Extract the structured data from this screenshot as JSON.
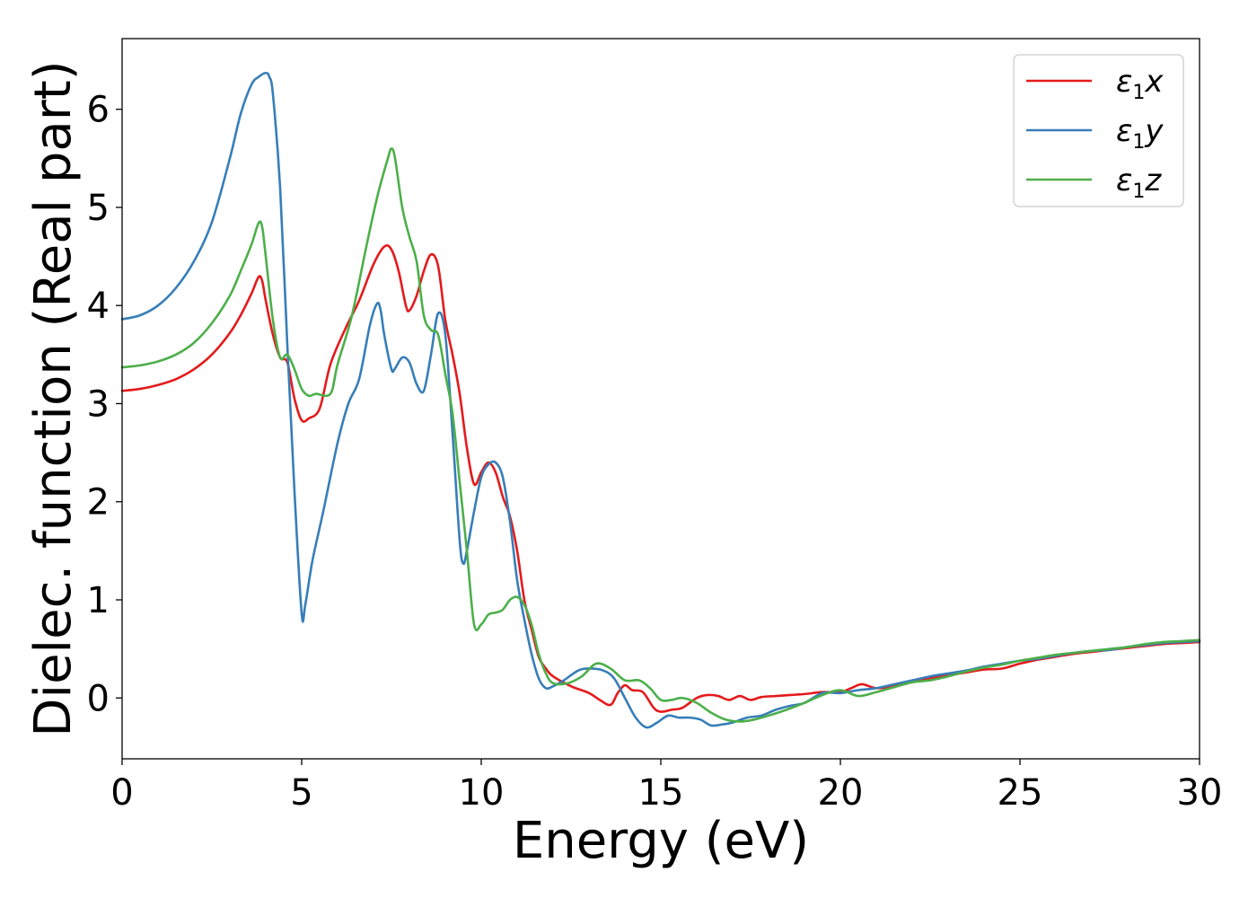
{
  "chart_data": {
    "type": "line",
    "title": "",
    "xlabel": "Energy (eV)",
    "ylabel": "Dielec. function (Real part)",
    "xlim": [
      0,
      30
    ],
    "ylim": [
      -0.62,
      6.72
    ],
    "xticks": [
      0,
      5,
      10,
      15,
      20,
      25,
      30
    ],
    "yticks": [
      0,
      1,
      2,
      3,
      4,
      5,
      6
    ],
    "grid": false,
    "legend_position": "top-right",
    "series": [
      {
        "name": "ε₁x",
        "legend_base": "ε",
        "legend_sub": "1",
        "legend_var": "x",
        "color": "#e41a1c",
        "x": [
          0,
          0.5,
          1.0,
          1.5,
          2.0,
          2.5,
          3.0,
          3.3,
          3.6,
          3.8,
          3.9,
          4.0,
          4.2,
          4.4,
          4.6,
          4.8,
          5.0,
          5.2,
          5.5,
          5.8,
          6.2,
          6.6,
          7.0,
          7.3,
          7.5,
          7.7,
          7.9,
          8.0,
          8.2,
          8.4,
          8.6,
          8.8,
          9.0,
          9.2,
          9.4,
          9.6,
          9.8,
          10.0,
          10.2,
          10.4,
          10.6,
          10.8,
          11.0,
          11.2,
          11.4,
          11.6,
          11.8,
          12.0,
          12.5,
          13.0,
          13.3,
          13.6,
          13.8,
          14.0,
          14.2,
          14.5,
          14.8,
          15.0,
          15.3,
          15.6,
          16.0,
          16.3,
          16.6,
          16.9,
          17.2,
          17.5,
          17.8,
          18.2,
          18.6,
          19.0,
          19.5,
          20.0,
          20.3,
          20.6,
          21.0,
          21.5,
          22.0,
          22.5,
          23.0,
          23.5,
          24.0,
          24.5,
          25.0,
          25.5,
          26.0,
          26.5,
          27.0,
          27.5,
          28.0,
          28.5,
          29.0,
          29.5,
          30.0
        ],
        "y": [
          3.13,
          3.15,
          3.19,
          3.25,
          3.35,
          3.5,
          3.72,
          3.9,
          4.12,
          4.29,
          4.25,
          4.05,
          3.7,
          3.47,
          3.42,
          3.05,
          2.83,
          2.85,
          2.95,
          3.4,
          3.75,
          4.05,
          4.42,
          4.6,
          4.57,
          4.35,
          4.0,
          3.95,
          4.1,
          4.35,
          4.52,
          4.4,
          3.85,
          3.5,
          3.1,
          2.55,
          2.18,
          2.3,
          2.4,
          2.3,
          2.05,
          1.85,
          1.5,
          1.0,
          0.7,
          0.42,
          0.3,
          0.22,
          0.12,
          0.05,
          -0.02,
          -0.07,
          0.05,
          0.13,
          0.08,
          0.06,
          -0.1,
          -0.14,
          -0.12,
          -0.1,
          0.0,
          0.03,
          0.02,
          -0.02,
          0.02,
          -0.02,
          0.01,
          0.02,
          0.03,
          0.04,
          0.06,
          0.06,
          0.1,
          0.14,
          0.1,
          0.12,
          0.16,
          0.2,
          0.23,
          0.26,
          0.29,
          0.3,
          0.35,
          0.39,
          0.42,
          0.45,
          0.47,
          0.49,
          0.51,
          0.53,
          0.55,
          0.56,
          0.57
        ]
      },
      {
        "name": "ε₁y",
        "legend_base": "ε",
        "legend_sub": "1",
        "legend_var": "y",
        "color": "#377eb8",
        "x": [
          0,
          0.5,
          1.0,
          1.5,
          2.0,
          2.5,
          3.0,
          3.3,
          3.6,
          3.8,
          4.0,
          4.1,
          4.2,
          4.4,
          4.6,
          4.8,
          5.0,
          5.1,
          5.3,
          5.6,
          6.0,
          6.3,
          6.6,
          6.9,
          7.1,
          7.2,
          7.3,
          7.5,
          7.6,
          7.8,
          8.0,
          8.2,
          8.4,
          8.6,
          8.8,
          9.0,
          9.2,
          9.4,
          9.5,
          9.6,
          9.8,
          10.0,
          10.2,
          10.4,
          10.6,
          10.8,
          11.0,
          11.2,
          11.4,
          11.6,
          11.8,
          12.0,
          12.3,
          12.7,
          13.0,
          13.4,
          13.7,
          14.0,
          14.3,
          14.6,
          14.9,
          15.2,
          15.5,
          15.8,
          16.1,
          16.4,
          16.7,
          17.0,
          17.4,
          17.8,
          18.2,
          18.6,
          19.0,
          19.5,
          20.0,
          20.5,
          21.0,
          21.5,
          22.0,
          22.5,
          23.0,
          23.5,
          24.0,
          24.5,
          25.0,
          25.5,
          26.0,
          26.5,
          27.0,
          27.5,
          28.0,
          28.5,
          29.0,
          29.5,
          30.0
        ],
        "y": [
          3.86,
          3.9,
          4.0,
          4.18,
          4.45,
          4.85,
          5.5,
          5.95,
          6.25,
          6.33,
          6.37,
          6.33,
          6.15,
          5.2,
          3.6,
          2.1,
          0.86,
          0.95,
          1.4,
          1.9,
          2.6,
          3.0,
          3.25,
          3.8,
          4.02,
          3.95,
          3.7,
          3.35,
          3.36,
          3.47,
          3.42,
          3.2,
          3.13,
          3.5,
          3.92,
          3.7,
          2.7,
          1.6,
          1.37,
          1.5,
          1.9,
          2.25,
          2.38,
          2.4,
          2.25,
          1.8,
          1.2,
          0.8,
          0.45,
          0.2,
          0.1,
          0.12,
          0.18,
          0.28,
          0.3,
          0.28,
          0.2,
          0.0,
          -0.2,
          -0.3,
          -0.25,
          -0.18,
          -0.2,
          -0.2,
          -0.22,
          -0.28,
          -0.27,
          -0.25,
          -0.2,
          -0.18,
          -0.12,
          -0.08,
          -0.05,
          0.05,
          0.05,
          0.08,
          0.1,
          0.14,
          0.18,
          0.22,
          0.25,
          0.28,
          0.32,
          0.35,
          0.38,
          0.4,
          0.43,
          0.46,
          0.48,
          0.49,
          0.52,
          0.54,
          0.56,
          0.57,
          0.58
        ]
      },
      {
        "name": "ε₁z",
        "legend_base": "ε",
        "legend_sub": "1",
        "legend_var": "z",
        "color": "#4daf4a",
        "x": [
          0,
          0.5,
          1.0,
          1.5,
          2.0,
          2.5,
          3.0,
          3.3,
          3.6,
          3.8,
          3.9,
          4.0,
          4.2,
          4.4,
          4.6,
          4.8,
          5.0,
          5.2,
          5.4,
          5.8,
          6.0,
          6.4,
          6.8,
          7.1,
          7.4,
          7.5,
          7.6,
          7.8,
          8.0,
          8.2,
          8.4,
          8.6,
          8.8,
          9.0,
          9.2,
          9.4,
          9.6,
          9.8,
          10.0,
          10.2,
          10.4,
          10.6,
          10.8,
          11.0,
          11.2,
          11.4,
          11.6,
          11.8,
          12.0,
          12.4,
          12.8,
          13.2,
          13.6,
          14.0,
          14.4,
          14.7,
          15.0,
          15.3,
          15.6,
          16.0,
          16.4,
          16.8,
          17.2,
          17.6,
          18.0,
          18.5,
          19.0,
          19.5,
          20.0,
          20.5,
          21.0,
          21.5,
          22.0,
          22.5,
          23.0,
          23.5,
          24.0,
          24.5,
          25.0,
          25.5,
          26.0,
          26.5,
          27.0,
          27.5,
          28.0,
          28.5,
          29.0,
          29.5,
          30.0
        ],
        "y": [
          3.37,
          3.39,
          3.43,
          3.5,
          3.62,
          3.82,
          4.1,
          4.35,
          4.62,
          4.84,
          4.8,
          4.5,
          3.85,
          3.47,
          3.5,
          3.35,
          3.15,
          3.08,
          3.1,
          3.1,
          3.4,
          3.9,
          4.6,
          5.1,
          5.5,
          5.6,
          5.5,
          5.0,
          4.7,
          4.45,
          3.9,
          3.75,
          3.7,
          3.3,
          2.9,
          2.2,
          1.5,
          0.75,
          0.75,
          0.85,
          0.87,
          0.9,
          1.0,
          1.03,
          0.95,
          0.75,
          0.45,
          0.25,
          0.15,
          0.15,
          0.22,
          0.35,
          0.3,
          0.18,
          0.18,
          0.1,
          -0.02,
          -0.02,
          0.0,
          -0.05,
          -0.15,
          -0.22,
          -0.24,
          -0.22,
          -0.18,
          -0.12,
          -0.05,
          0.03,
          0.08,
          0.02,
          0.06,
          0.11,
          0.16,
          0.18,
          0.22,
          0.27,
          0.31,
          0.34,
          0.38,
          0.41,
          0.44,
          0.46,
          0.48,
          0.5,
          0.52,
          0.55,
          0.57,
          0.58,
          0.59
        ]
      }
    ]
  }
}
